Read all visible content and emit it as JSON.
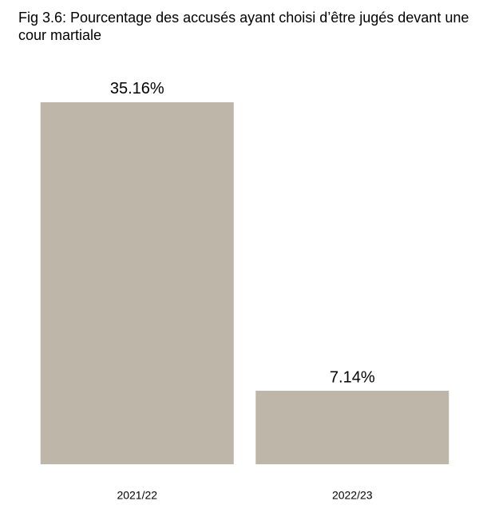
{
  "chart_data": {
    "type": "bar",
    "title": "Fig 3.6: Pourcentage des accusés ayant choisi d’être jugés devant une cour martiale",
    "categories": [
      "2021/22",
      "2022/23"
    ],
    "values": [
      35.16,
      7.14
    ],
    "value_labels": [
      "35.16%",
      "7.14%"
    ],
    "color": "#bdb6a9"
  }
}
